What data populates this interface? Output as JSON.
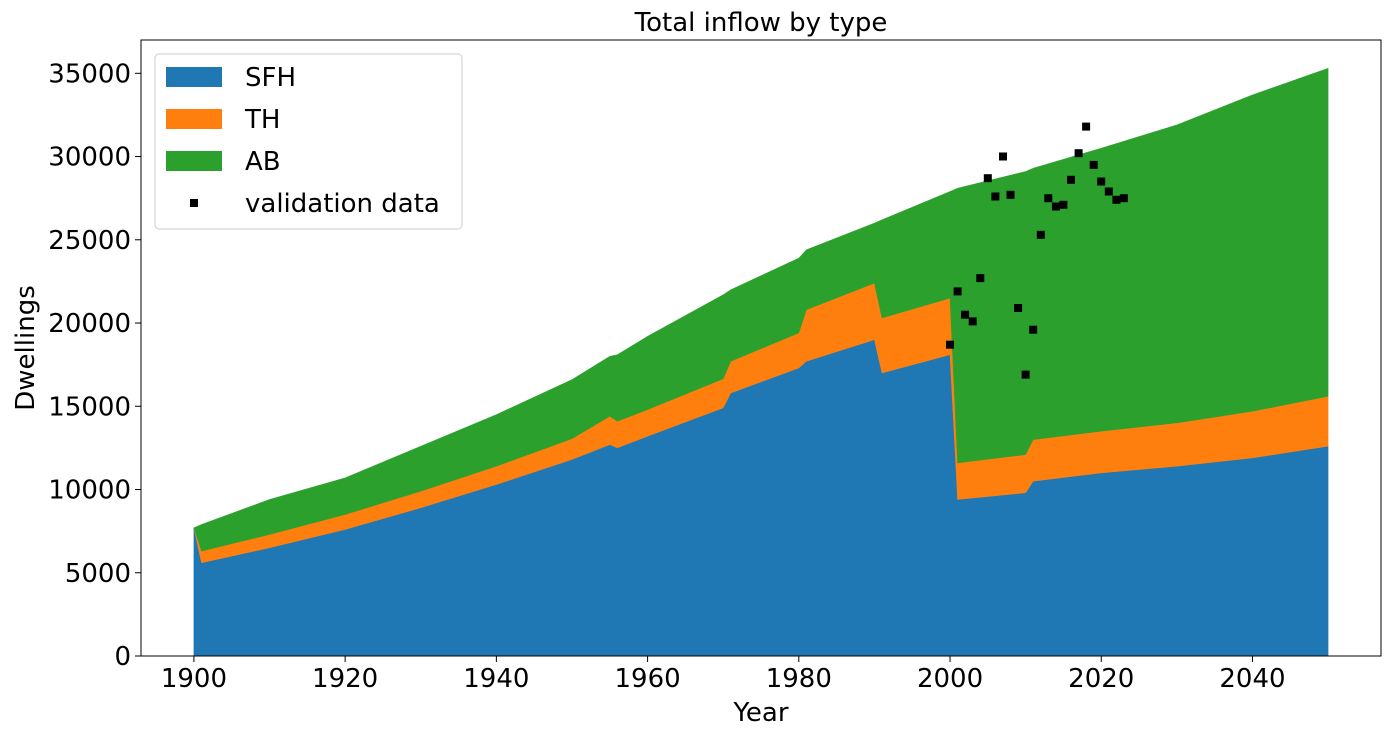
{
  "chart_data": {
    "type": "area",
    "title": "Total inflow by type",
    "xlabel": "Year",
    "ylabel": "Dwellings",
    "xlim": [
      1893,
      2057
    ],
    "ylim": [
      0,
      37000
    ],
    "xticks": [
      1900,
      1920,
      1940,
      1960,
      1980,
      2000,
      2020,
      2040
    ],
    "yticks": [
      0,
      5000,
      10000,
      15000,
      20000,
      25000,
      30000,
      35000
    ],
    "stacked": true,
    "legend_position": "top-left",
    "series": [
      {
        "name": "SFH",
        "color": "#1f77b4",
        "x": [
          1900,
          1901,
          1910,
          1920,
          1930,
          1940,
          1950,
          1955,
          1956,
          1960,
          1970,
          1971,
          1980,
          1981,
          1990,
          1991,
          2000,
          2001,
          2010,
          2011,
          2020,
          2030,
          2040,
          2050
        ],
        "values": [
          7700,
          5600,
          6500,
          7600,
          8900,
          10300,
          11800,
          12700,
          12500,
          13200,
          14900,
          15800,
          17300,
          17700,
          19000,
          17000,
          18100,
          9400,
          9800,
          10500,
          11000,
          11400,
          11900,
          12600
        ]
      },
      {
        "name": "TH",
        "color": "#ff7f0e",
        "x": [
          1900,
          1901,
          1910,
          1920,
          1930,
          1940,
          1950,
          1955,
          1956,
          1960,
          1970,
          1971,
          1980,
          1981,
          1990,
          1991,
          2000,
          2001,
          2010,
          2011,
          2020,
          2030,
          2040,
          2050
        ],
        "values": [
          0,
          700,
          800,
          900,
          1000,
          1100,
          1250,
          1700,
          1600,
          1600,
          1750,
          1900,
          2100,
          3100,
          3400,
          3300,
          3400,
          2200,
          2300,
          2500,
          2500,
          2600,
          2800,
          3000
        ]
      },
      {
        "name": "AB",
        "color": "#2ca02c",
        "x": [
          1900,
          1901,
          1910,
          1920,
          1930,
          1940,
          1950,
          1955,
          1956,
          1960,
          1970,
          1971,
          1980,
          1981,
          1990,
          1991,
          2000,
          2001,
          2010,
          2011,
          2020,
          2030,
          2040,
          2050
        ],
        "values": [
          0,
          1600,
          2100,
          2200,
          2700,
          3100,
          3550,
          3600,
          4000,
          4400,
          5050,
          4300,
          4500,
          3600,
          3600,
          5900,
          6400,
          16500,
          17000,
          16300,
          17000,
          17900,
          19000,
          19700
        ]
      }
    ],
    "scatter": {
      "name": "validation data",
      "color": "#000000",
      "x": [
        2000,
        2001,
        2002,
        2003,
        2004,
        2005,
        2006,
        2007,
        2008,
        2009,
        2010,
        2011,
        2012,
        2013,
        2014,
        2015,
        2016,
        2017,
        2018,
        2019,
        2020,
        2021,
        2022,
        2023
      ],
      "y": [
        18700,
        21900,
        20500,
        20100,
        22700,
        28700,
        27600,
        30000,
        27700,
        20900,
        16900,
        19600,
        25300,
        27500,
        27000,
        27100,
        28600,
        30200,
        31800,
        29500,
        28500,
        27900,
        27400,
        27500
      ]
    }
  }
}
